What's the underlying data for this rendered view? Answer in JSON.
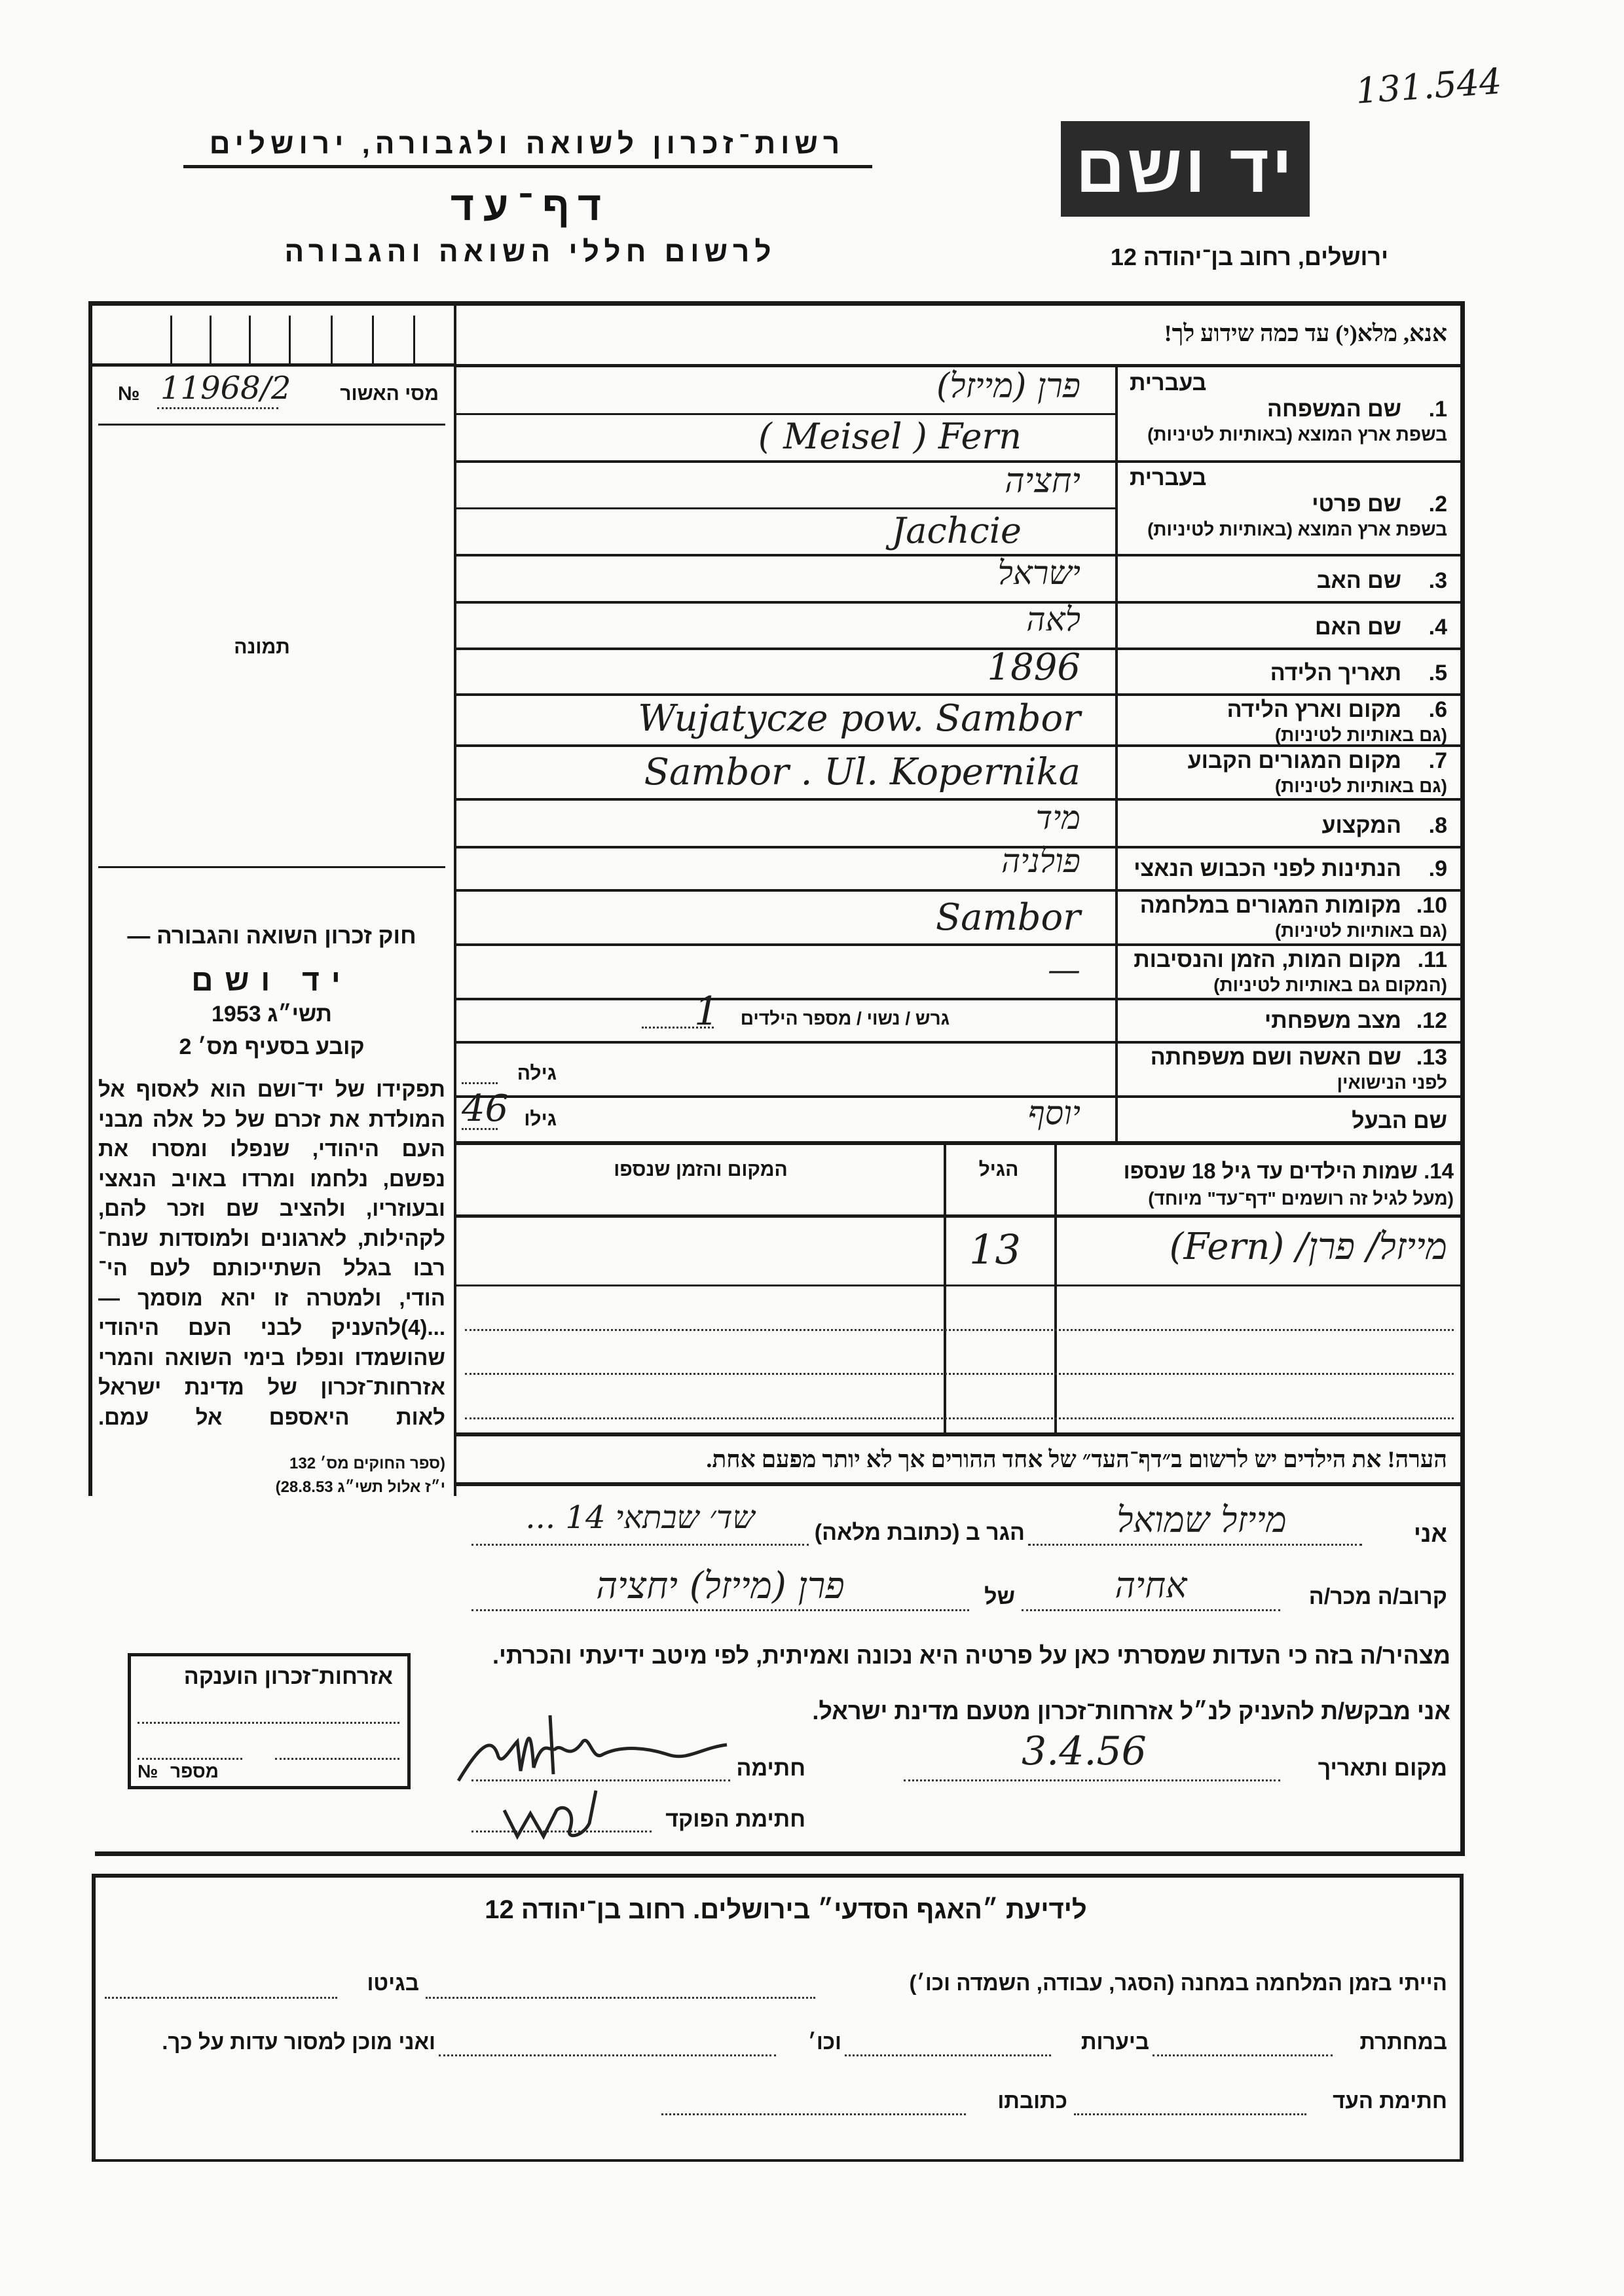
{
  "archive_number": "131.544",
  "header": {
    "institution": "רשות־זכרון לשואה ולגבורה, ירושלים",
    "form_title": "דף־עד",
    "form_subtitle": "לרשום חללי השואה והגבורה",
    "logo_text": "יד ושם",
    "address": "ירושלים, רחוב בן־יהודה 12"
  },
  "instructions": "אנא, מלא(י) עד כמה שידוע לך!",
  "certificate_row": {
    "label": "מסי האשור",
    "no_sign": "№",
    "value": "11968/2"
  },
  "photo_label": "תמונה",
  "rows": [
    {
      "num": "1.",
      "label": "שם המשפחה",
      "heb_tag": "בעברית",
      "sublabel": "בשפת ארץ המוצא (באותיות לטיניות)",
      "value_hebrew": "פרן (מייזל)",
      "value_latin": "( Meisel )  Fern"
    },
    {
      "num": "2.",
      "label": "שם פרטי",
      "heb_tag": "בעברית",
      "sublabel": "בשפת ארץ המוצא (באותיות לטיניות)",
      "value_hebrew": "יחציה",
      "value_latin": "Jachcie"
    },
    {
      "num": "3.",
      "label": "שם האב",
      "value": "ישראל"
    },
    {
      "num": "4.",
      "label": "שם האם",
      "value": "לאה"
    },
    {
      "num": "5.",
      "label": "תאריך הלידה",
      "value": "1896"
    },
    {
      "num": "6.",
      "label": "מקום וארץ הלידה",
      "sublabel": "(גם באותיות לטיניות)",
      "value": "Wujatycze  pow. Sambor"
    },
    {
      "num": "7.",
      "label": "מקום המגורים הקבוע",
      "sublabel": "(גם באותיות לטיניות)",
      "value": "Sambor .  Ul. Kopernika"
    },
    {
      "num": "8.",
      "label": "המקצוע",
      "value": "מיד"
    },
    {
      "num": "9.",
      "label": "הנתינות לפני הכבוש הנאצי",
      "value": "פולניה"
    },
    {
      "num": "10.",
      "label": "מקומות המגורים במלחמה",
      "sublabel": "(גם באותיות לטיניות)",
      "value": "Sambor"
    },
    {
      "num": "11.",
      "label": "מקום המות, הזמן והנסיבות",
      "sublabel": "(המקום גם באותיות לטיניות)",
      "value": "—"
    },
    {
      "num": "12.",
      "label": "מצב משפחתי",
      "options": "גרש / נשוי / מספר הילדים",
      "children_count": "1"
    },
    {
      "num": "13.",
      "label": "שם האשה ושם משפחתה",
      "sublabel": "לפני הנישואין",
      "age_label": "גילה",
      "value": ""
    },
    {
      "num": "",
      "label": "שם הבעל",
      "age_label": "גילו",
      "age": "46",
      "value": "יוסף"
    }
  ],
  "children_table": {
    "header_label": "14. שמות הילדים עד גיל 18 שנספו",
    "header_sublabel": "(מעל לגיל זה רושמים \"דף־עד\" מיוחד)",
    "col_age": "הגיל",
    "col_place_time": "המקום והזמן שנספו",
    "rows": [
      {
        "name": "מייזל/ פרן/ (Fern)",
        "age": "13",
        "place_time": ""
      }
    ]
  },
  "law_box": {
    "title": "חוק זכרון השואה והגבורה —",
    "name": "יד ושם",
    "year": "תשי״ג 1953",
    "clause": "קובע בסעיף מס׳ 2",
    "lines": [
      "תפקידו של יד־ושם הוא לאסוף אל",
      "המולדת את זכרם של כל אלה מבני",
      "העם היהודי, שנפלו ומסרו את",
      "נפשם, נלחמו ומרדו באויב הנאצי",
      "ובעוזריו, ולהציב שם וזכר להם,",
      "לקהילות, לארגונים ולמוסדות שנח־",
      "רבו בגלל השתייכותם לעם הי־",
      "הודי, ולמטרה זו יהא מוסמך —",
      "...(4)להעניק לבני העם היהודי",
      "שהושמדו ונפלו בימי השואה והמרי",
      "אזרחות־זכרון של מדינת ישראל",
      "לאות היאספם אל עמם."
    ],
    "source_1": "(ספר החוקים מס׳ 132",
    "source_2": "י״ז אלול תשי״ג 28.8.53)"
  },
  "citizenship_box": {
    "title": "אזרחות־זכרון הוענקה",
    "number_label": "מספר",
    "no_sign": "№"
  },
  "note": "הערה!  את הילדים יש לרשום ב״דף־העד״ של אחד ההורים אך לא יותר מפעם אחת.",
  "declaration": {
    "i_label": "אני",
    "witness_name": "מייזל שמואל",
    "resides_label": "הגר ב (כתובת מלאה)",
    "address": "שד׳ שבתאי 14 ...",
    "relation_label": "קרוב/ה מכר/ה",
    "relation": "אחיה",
    "of_label": "של",
    "victim": "פרן (מייזל) יחציה",
    "statement": "מצהיר/ה בזה כי העדות שמסרתי כאן על פרטיה היא נכונה ואמיתית, לפי מיטב ידיעתי והכרתי.",
    "request": "אני מבקש/ת להעניק לנ״ל אזרחות־זכרון מטעם מדינת ישראל.",
    "place_date_label": "מקום ותאריך",
    "place_date": "3.4.56",
    "signature_label": "חתימה",
    "officer_signature_label": "חתימת הפוקד"
  },
  "info_section": {
    "title": "לידיעת ״האגף הסדעי״ בירושלים.  רחוב בן־יהודה 12",
    "line1_a": "הייתי בזמן המלחמה במחנה (הסגר, עבודה, השמדה וכו׳)",
    "line1_b": "בגיטו",
    "line2_a": "במחתרת",
    "line2_b": "ביערות",
    "line2_c": "וכו׳",
    "line2_d": "ואני מוכן למסור עדות על כך.",
    "line3_a": "חתימת העד",
    "line3_b": "כתובתו"
  }
}
